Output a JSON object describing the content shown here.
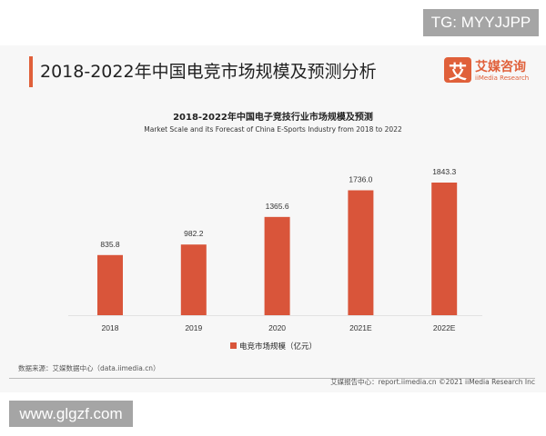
{
  "watermark_top": "TG: MYYJJPP",
  "watermark_bottom": "www.glgzf.com",
  "page_title": "2018-2022年中国电竞市场规模及预测分析",
  "logo": {
    "mark": "艾",
    "cn": "艾媒咨询",
    "en": "iiMedia Research"
  },
  "source": "数据来源：艾媒数据中心（data.iimedia.cn）",
  "footer": "艾媒报告中心：report.iimedia.cn   ©2021  iiMedia Research  Inc",
  "colors": {
    "bar": "#d9553a",
    "accent": "#e0603a"
  },
  "chart_data": {
    "type": "bar",
    "title": "2018-2022年中国电子竞技行业市场规模及预测",
    "subtitle": "Market Scale and its Forecast of China E-Sports Industry from 2018 to 2022",
    "categories": [
      "2018",
      "2019",
      "2020",
      "2021E",
      "2022E"
    ],
    "series": [
      {
        "name": "电竞市场规模（亿元）",
        "values": [
          835.8,
          982.2,
          1365.6,
          1736.0,
          1843.3
        ]
      }
    ],
    "value_labels": [
      "835.8",
      "982.2",
      "1365.6",
      "1736.0",
      "1843.3"
    ],
    "legend": "bottom",
    "grid": false
  }
}
